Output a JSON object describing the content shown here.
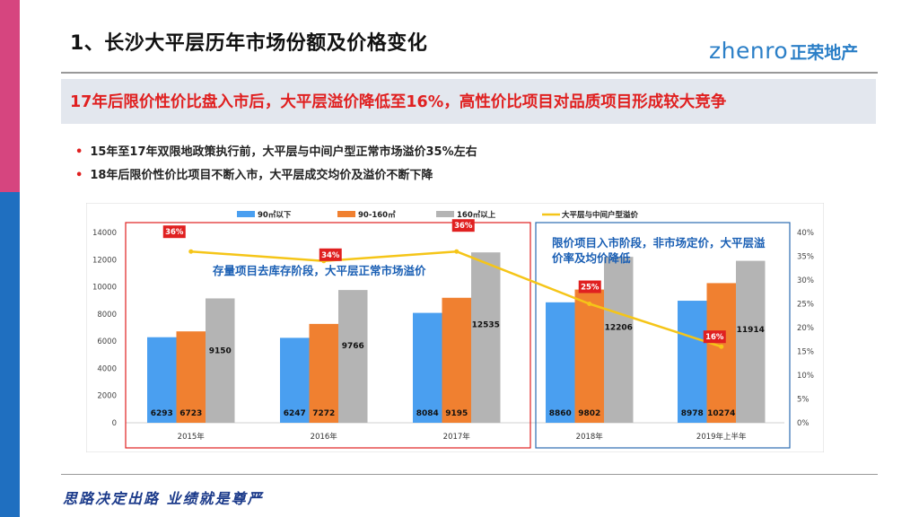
{
  "title": "1、长沙大平层历年市场份额及价格变化",
  "logo": {
    "en": "zhenro",
    "cn": "正荣地产",
    "color": "#2b7fc7"
  },
  "banner": {
    "text": "17年后限价性价比盘入市后，大平层溢价降低至16%，高性价比项目对品质项目形成较大竞争"
  },
  "bullets": [
    "15年至17年双限地政策执行前，大平层与中间户型正常市场溢价35%左右",
    "18年后限价性价比项目不断入市，大平层成交均价及溢价不断下降"
  ],
  "chart_data": {
    "type": "bar",
    "categories": [
      "2015年",
      "2016年",
      "2017年",
      "2018年",
      "2019年上半年"
    ],
    "series": [
      {
        "name": "90㎡以下",
        "values": [
          6293,
          6247,
          8084,
          8860,
          8978
        ],
        "color": "#4a9ff0"
      },
      {
        "name": "90-160㎡",
        "values": [
          6723,
          7272,
          9195,
          9802,
          10274
        ],
        "color": "#f08030"
      },
      {
        "name": "160㎡以上",
        "values": [
          9150,
          9766,
          12535,
          12206,
          11914
        ],
        "color": "#b4b4b4"
      }
    ],
    "line": {
      "name": "大平层与中间户型溢价",
      "values": [
        36,
        34,
        36,
        25,
        16
      ],
      "labels": [
        "36%",
        "34%",
        "36%",
        "25%",
        "16%"
      ],
      "color": "#f5c518"
    },
    "ylim": [
      0,
      14000
    ],
    "yticks": [
      "14000",
      "12000",
      "10000",
      "8000",
      "6000",
      "4000",
      "2000",
      "0"
    ],
    "y2lim": [
      0,
      40
    ],
    "y2ticks": [
      "40%",
      "35%",
      "30%",
      "25%",
      "20%",
      "15%",
      "10%",
      "5%",
      "0%"
    ],
    "annotations": [
      {
        "text": "存量项目去库存阶段，大平层正常市场溢价",
        "color": "#1a5fb4"
      },
      {
        "text": "限价项目入市阶段，非市场定价，大平层溢价率及均价降低",
        "color": "#1a5fb4"
      }
    ],
    "regions": [
      {
        "name": "stock-phase",
        "color": "#e02020"
      },
      {
        "name": "price-limit-phase",
        "color": "#2b6cb0"
      }
    ]
  },
  "footer": "思路决定出路 业绩就是尊严"
}
